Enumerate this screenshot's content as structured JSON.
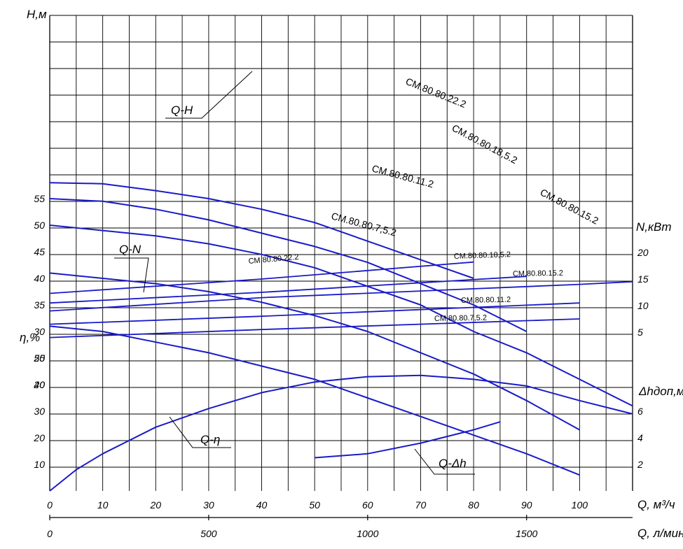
{
  "chart_data": {
    "type": "line",
    "x_axis": {
      "label": "Q, м³/ч",
      "ticks": [
        0,
        10,
        20,
        30,
        40,
        50,
        60,
        70,
        80,
        90,
        100
      ],
      "range": [
        0,
        110
      ]
    },
    "x2_axis": {
      "label": "Q, л/мин",
      "ticks": [
        0,
        500,
        1000,
        1500
      ]
    },
    "axes": {
      "head": {
        "label": "H,м",
        "ticks": [
          20,
          25,
          30,
          35,
          40,
          45,
          50,
          55
        ]
      },
      "power": {
        "label": "N,кВт",
        "ticks": [
          5,
          10,
          15,
          20
        ]
      },
      "efficiency": {
        "label": "η,%",
        "ticks": [
          10,
          20,
          30,
          40,
          50
        ]
      },
      "npsh": {
        "label": "Δhдоп,м",
        "ticks": [
          2,
          4,
          6
        ]
      }
    },
    "head_series": [
      {
        "name": "СМ.80.80.22.2",
        "points": [
          [
            0,
            58
          ],
          [
            10,
            57.8
          ],
          [
            20,
            56.5
          ],
          [
            30,
            55
          ],
          [
            40,
            53
          ],
          [
            50,
            50.5
          ],
          [
            60,
            47
          ],
          [
            70,
            43.5
          ],
          [
            80,
            40
          ]
        ]
      },
      {
        "name": "СМ.80.80.18,5.2",
        "points": [
          [
            0,
            55
          ],
          [
            10,
            54.5
          ],
          [
            20,
            53
          ],
          [
            30,
            51
          ],
          [
            40,
            48.5
          ],
          [
            50,
            46
          ],
          [
            60,
            43
          ],
          [
            70,
            39
          ],
          [
            80,
            35
          ],
          [
            90,
            30
          ]
        ]
      },
      {
        "name": "СМ.80.80.15.2",
        "points": [
          [
            0,
            50
          ],
          [
            10,
            49
          ],
          [
            20,
            48
          ],
          [
            30,
            46.5
          ],
          [
            40,
            44.5
          ],
          [
            50,
            42
          ],
          [
            60,
            38.5
          ],
          [
            70,
            35
          ],
          [
            80,
            30
          ],
          [
            90,
            26
          ],
          [
            100,
            21
          ],
          [
            110,
            16
          ]
        ]
      },
      {
        "name": "СМ.80.80.11.2",
        "points": [
          [
            0,
            41
          ],
          [
            10,
            40
          ],
          [
            20,
            39
          ],
          [
            30,
            37.5
          ],
          [
            40,
            35.5
          ],
          [
            50,
            33
          ],
          [
            60,
            30
          ],
          [
            70,
            26
          ],
          [
            80,
            22
          ],
          [
            90,
            17
          ],
          [
            100,
            11.5
          ]
        ]
      },
      {
        "name": "СМ.80.80.7,5.2",
        "points": [
          [
            0,
            31
          ],
          [
            10,
            30
          ],
          [
            20,
            28
          ],
          [
            30,
            26
          ],
          [
            40,
            23.5
          ],
          [
            50,
            21
          ],
          [
            60,
            17.5
          ],
          [
            70,
            14
          ],
          [
            80,
            10.5
          ],
          [
            90,
            7
          ],
          [
            100,
            3
          ]
        ]
      }
    ],
    "head_label": "Q-H",
    "power_series": [
      {
        "name": "СМ.80.80.22.2",
        "points": [
          [
            0,
            12.3
          ],
          [
            40,
            15
          ],
          [
            80,
            18.2
          ]
        ]
      },
      {
        "name": "СМ.80.80.18,5.2",
        "points": [
          [
            0,
            10.5
          ],
          [
            40,
            12.5
          ],
          [
            90,
            15.5
          ]
        ]
      },
      {
        "name": "СМ.80.80.15.2",
        "points": [
          [
            0,
            9
          ],
          [
            40,
            11.5
          ],
          [
            100,
            14
          ],
          [
            110,
            14.5
          ]
        ]
      },
      {
        "name": "СМ.80.80.11.2",
        "points": [
          [
            0,
            6.5
          ],
          [
            40,
            8
          ],
          [
            100,
            10.5
          ]
        ]
      },
      {
        "name": "СМ.80.80.7,5.2",
        "points": [
          [
            0,
            4
          ],
          [
            40,
            5.5
          ],
          [
            100,
            7.5
          ]
        ]
      }
    ],
    "power_label": "Q-N",
    "efficiency_series": {
      "name": "Q-η",
      "points": [
        [
          0,
          0
        ],
        [
          5,
          8
        ],
        [
          10,
          14
        ],
        [
          20,
          24
        ],
        [
          30,
          31
        ],
        [
          40,
          37
        ],
        [
          50,
          41
        ],
        [
          60,
          43
        ],
        [
          70,
          43.5
        ],
        [
          80,
          42
        ],
        [
          90,
          39.5
        ],
        [
          100,
          34
        ],
        [
          110,
          29
        ]
      ]
    },
    "npsh_series": {
      "name": "Q-Δh",
      "points": [
        [
          50,
          2.5
        ],
        [
          60,
          2.8
        ],
        [
          70,
          3.6
        ],
        [
          80,
          4.6
        ],
        [
          85,
          5.2
        ]
      ]
    },
    "grid": true
  }
}
